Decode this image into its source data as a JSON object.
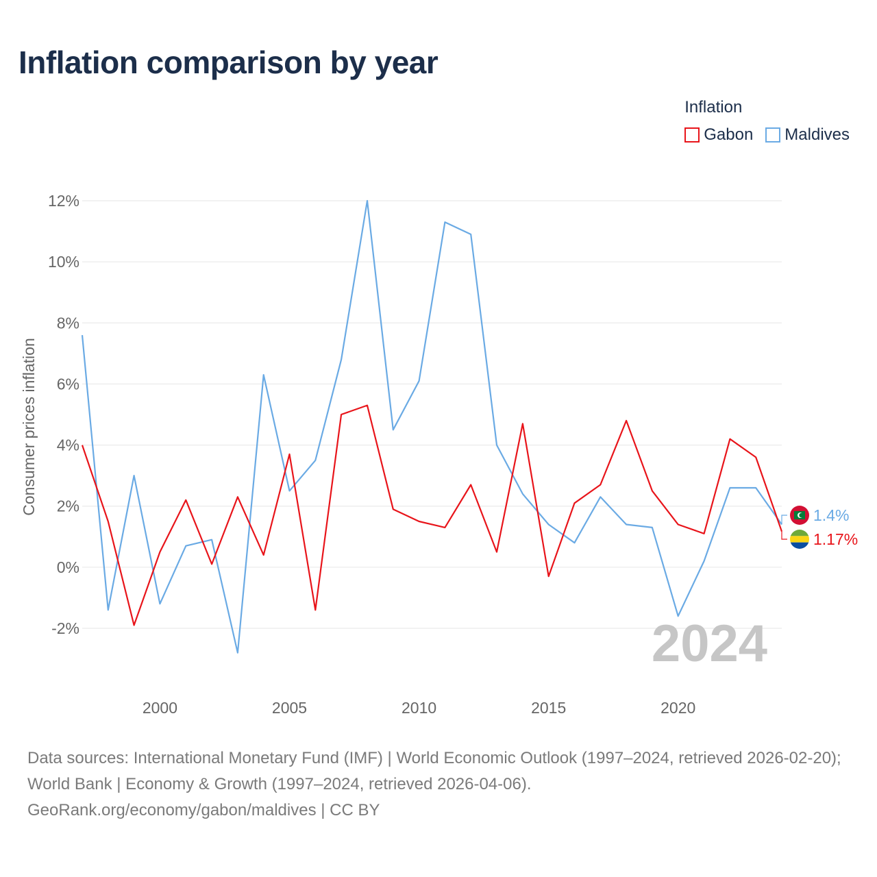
{
  "title": "Inflation comparison by year",
  "legend": {
    "title": "Inflation",
    "items": [
      {
        "name": "Gabon",
        "color": "#e8141a"
      },
      {
        "name": "Maldives",
        "color": "#6aaae4"
      }
    ]
  },
  "chart_data": {
    "type": "line",
    "title": "Inflation comparison by year",
    "xlabel": "",
    "ylabel": "Consumer prices inflation",
    "xlim": [
      1997,
      2024
    ],
    "ylim": [
      -2,
      12
    ],
    "x_ticks": [
      2000,
      2005,
      2010,
      2015,
      2020
    ],
    "y_ticks": [
      -2,
      0,
      2,
      4,
      6,
      8,
      10,
      12
    ],
    "y_tick_labels": [
      "-2%",
      "0%",
      "2%",
      "4%",
      "6%",
      "8%",
      "10%",
      "12%"
    ],
    "grid": true,
    "year_watermark": "2024",
    "x": [
      1997,
      1998,
      1999,
      2000,
      2001,
      2002,
      2003,
      2004,
      2005,
      2006,
      2007,
      2008,
      2009,
      2010,
      2011,
      2012,
      2013,
      2014,
      2015,
      2016,
      2017,
      2018,
      2019,
      2020,
      2021,
      2022,
      2023,
      2024
    ],
    "series": [
      {
        "name": "Gabon",
        "color": "#e8141a",
        "end_label": "1.17%",
        "values": [
          4.0,
          1.5,
          -1.9,
          0.5,
          2.2,
          0.1,
          2.3,
          0.4,
          3.7,
          -1.4,
          5.0,
          5.3,
          1.9,
          1.5,
          1.3,
          2.7,
          0.5,
          4.7,
          -0.3,
          2.1,
          2.7,
          4.8,
          2.5,
          1.4,
          1.1,
          4.2,
          3.6,
          1.17
        ]
      },
      {
        "name": "Maldives",
        "color": "#6aaae4",
        "end_label": "1.4%",
        "values": [
          7.6,
          -1.4,
          3.0,
          -1.2,
          0.7,
          0.9,
          -2.8,
          6.3,
          2.5,
          3.5,
          6.8,
          12.0,
          4.5,
          6.1,
          11.3,
          10.9,
          4.0,
          2.4,
          1.4,
          0.8,
          2.3,
          1.4,
          1.3,
          -1.6,
          0.2,
          2.6,
          2.6,
          1.4
        ]
      }
    ]
  },
  "footer": {
    "line1": "Data sources: International Monetary Fund (IMF) | World Economic Outlook (1997–2024, retrieved 2026-02-20); World Bank | Economy & Growth (1997–2024, retrieved 2026-04-06).",
    "line2": "GeoRank.org/economy/gabon/maldives | CC BY"
  }
}
